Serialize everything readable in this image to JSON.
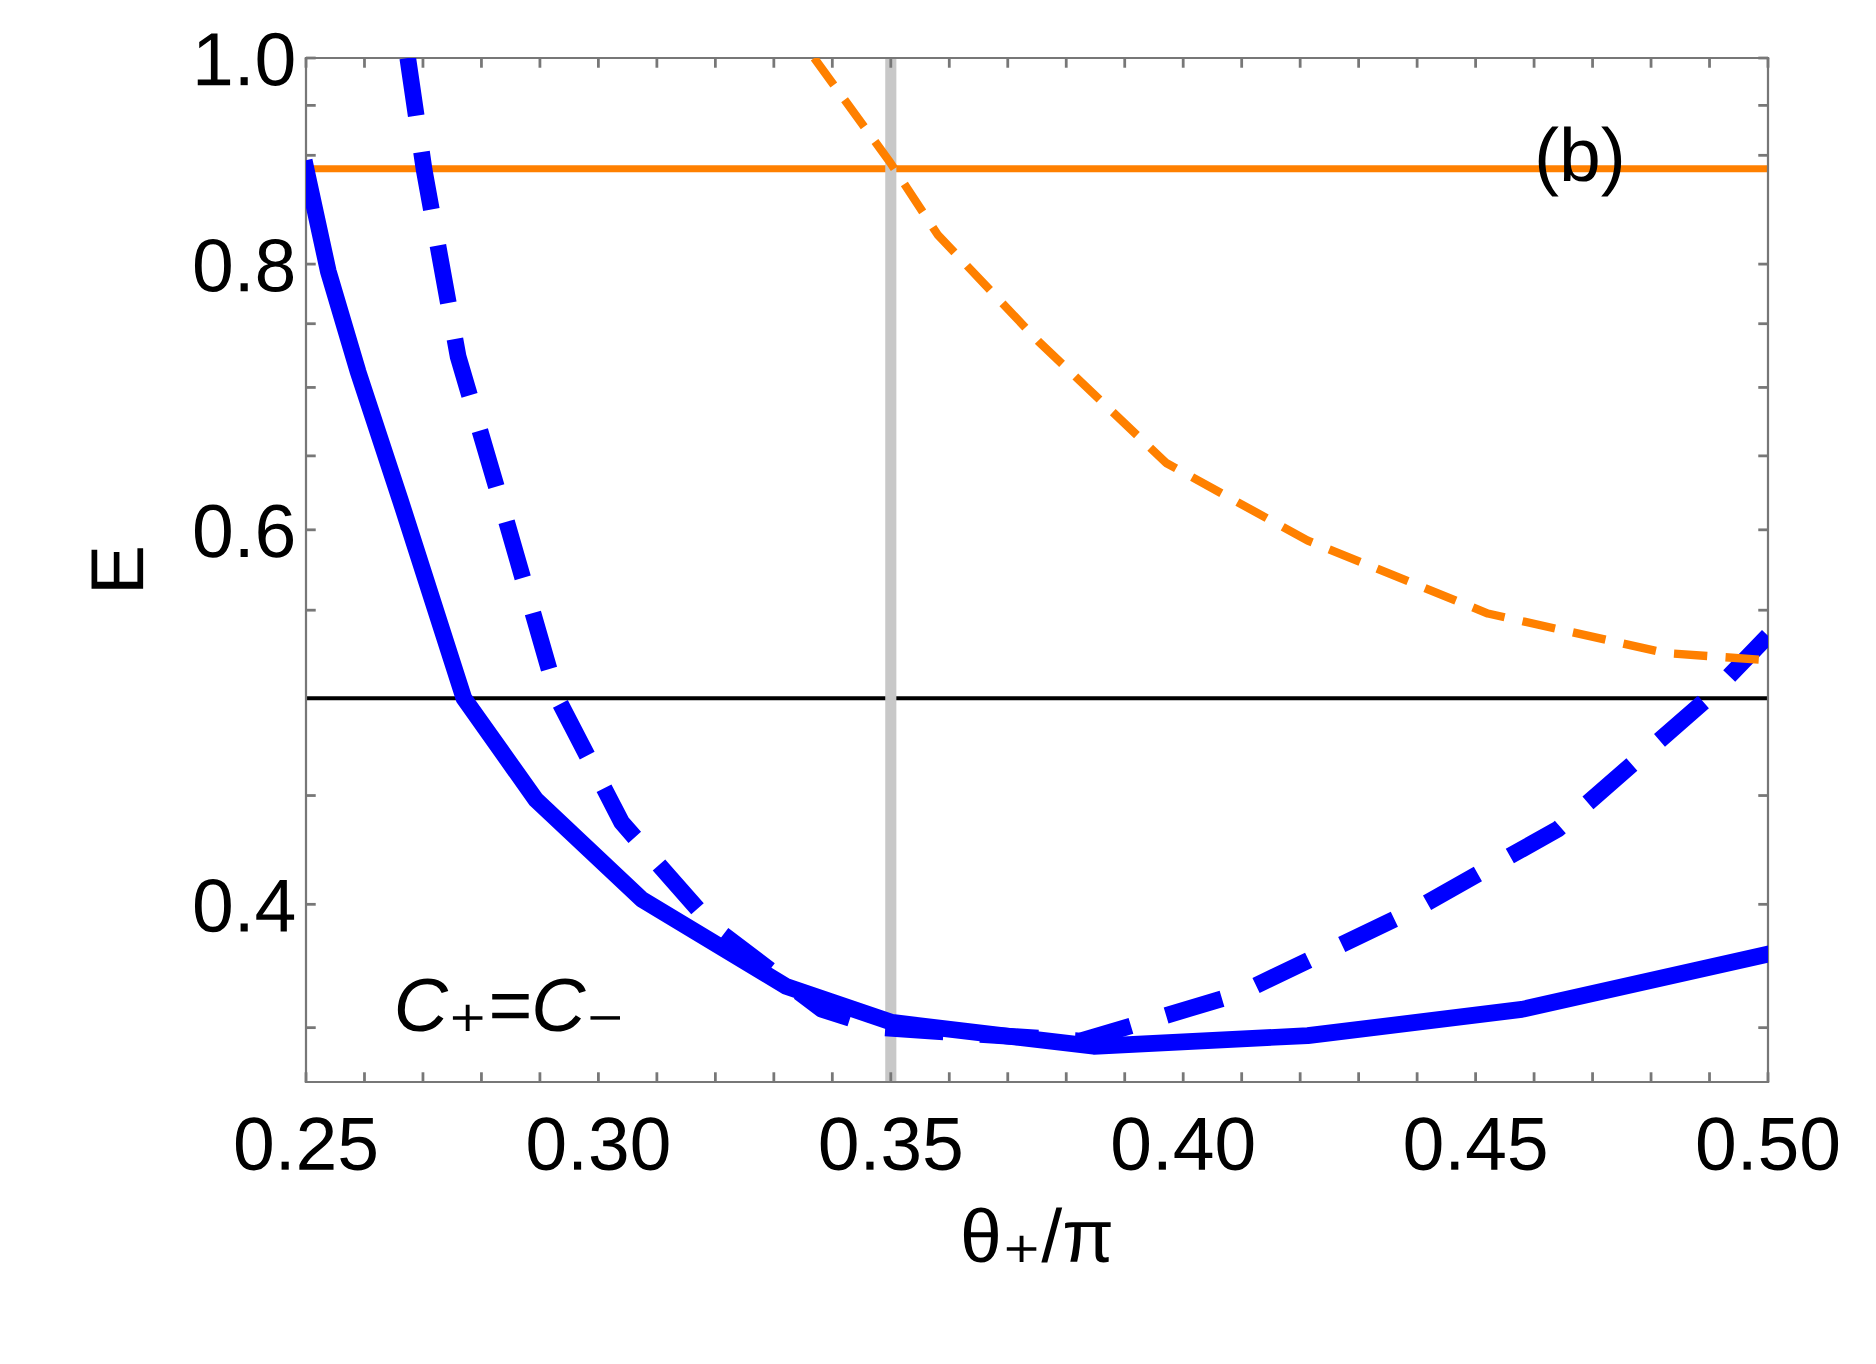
{
  "chart_data": {
    "type": "line",
    "xlabel": "θ₊/π",
    "ylabel": "E",
    "log": "y",
    "xlim": [
      0.25,
      0.5
    ],
    "ylim": [
      0.33,
      1.0
    ],
    "xticks": [
      {
        "value": 0.25,
        "label": "0.25"
      },
      {
        "value": 0.26,
        "label": null
      },
      {
        "value": 0.27,
        "label": null
      },
      {
        "value": 0.28,
        "label": null
      },
      {
        "value": 0.29,
        "label": null
      },
      {
        "value": 0.3,
        "label": "0.30"
      },
      {
        "value": 0.31,
        "label": null
      },
      {
        "value": 0.32,
        "label": null
      },
      {
        "value": 0.33,
        "label": null
      },
      {
        "value": 0.34,
        "label": null
      },
      {
        "value": 0.35,
        "label": "0.35"
      },
      {
        "value": 0.36,
        "label": null
      },
      {
        "value": 0.37,
        "label": null
      },
      {
        "value": 0.38,
        "label": null
      },
      {
        "value": 0.39,
        "label": null
      },
      {
        "value": 0.4,
        "label": "0.40"
      },
      {
        "value": 0.41,
        "label": null
      },
      {
        "value": 0.42,
        "label": null
      },
      {
        "value": 0.43,
        "label": null
      },
      {
        "value": 0.44,
        "label": null
      },
      {
        "value": 0.45,
        "label": "0.45"
      },
      {
        "value": 0.46,
        "label": null
      },
      {
        "value": 0.47,
        "label": null
      },
      {
        "value": 0.48,
        "label": null
      },
      {
        "value": 0.49,
        "label": null
      },
      {
        "value": 0.5,
        "label": "0.50"
      }
    ],
    "yticks": [
      {
        "value": 0.35,
        "label": null
      },
      {
        "value": 0.4,
        "label": "0.4"
      },
      {
        "value": 0.45,
        "label": null
      },
      {
        "value": 0.55,
        "label": null
      },
      {
        "value": 0.6,
        "label": "0.6"
      },
      {
        "value": 0.65,
        "label": null
      },
      {
        "value": 0.7,
        "label": null
      },
      {
        "value": 0.75,
        "label": null
      },
      {
        "value": 0.8,
        "label": "0.8"
      },
      {
        "value": 0.9,
        "label": null
      },
      {
        "value": 0.95,
        "label": null
      },
      {
        "value": 1.0,
        "label": "1.0"
      }
    ],
    "grid": false,
    "legend": false,
    "marker": "none",
    "series": [
      {
        "color": "#0000ff",
        "line_style": "solid",
        "x": [
          0.25,
          0.2538,
          0.2589,
          0.2661,
          0.277,
          0.2893,
          0.3075,
          0.3321,
          0.3502,
          0.3847,
          0.4213,
          0.4579,
          0.5
        ],
        "values": [
          0.887,
          0.794,
          0.712,
          0.62,
          0.5,
          0.448,
          0.402,
          0.366,
          0.352,
          0.343,
          0.347,
          0.357,
          0.379
        ]
      },
      {
        "color": "#0000ff",
        "line_style": "dashed",
        "x": [
          0.2674,
          0.2702,
          0.276,
          0.2832,
          0.293,
          0.304,
          0.3198,
          0.3382,
          0.348,
          0.3824,
          0.4094,
          0.4398,
          0.4641,
          0.4897,
          0.5
        ],
        "values": [
          1.0,
          0.886,
          0.724,
          0.62,
          0.5,
          0.437,
          0.39,
          0.357,
          0.35,
          0.345,
          0.363,
          0.398,
          0.434,
          0.5,
          0.535
        ]
      },
      {
        "color": "#ff8000",
        "line_style": "dashed",
        "x": [
          0.3369,
          0.3499,
          0.358,
          0.3752,
          0.3971,
          0.4213,
          0.4521,
          0.4826,
          0.5
        ],
        "values": [
          1.0,
          0.893,
          0.826,
          0.736,
          0.645,
          0.593,
          0.548,
          0.525,
          0.521
        ]
      }
    ],
    "ref_lines": [
      {
        "axis": "y",
        "value": 0.887,
        "color": "#ff8000",
        "line_style": "solid"
      },
      {
        "axis": "y",
        "value": 0.5,
        "color": "#000000",
        "line_style": "solid"
      },
      {
        "axis": "x",
        "value": 0.35,
        "color": "#c8c8c8",
        "line_style": "solid"
      }
    ],
    "annotations": [
      "(b)",
      "C₊=C₋"
    ]
  }
}
